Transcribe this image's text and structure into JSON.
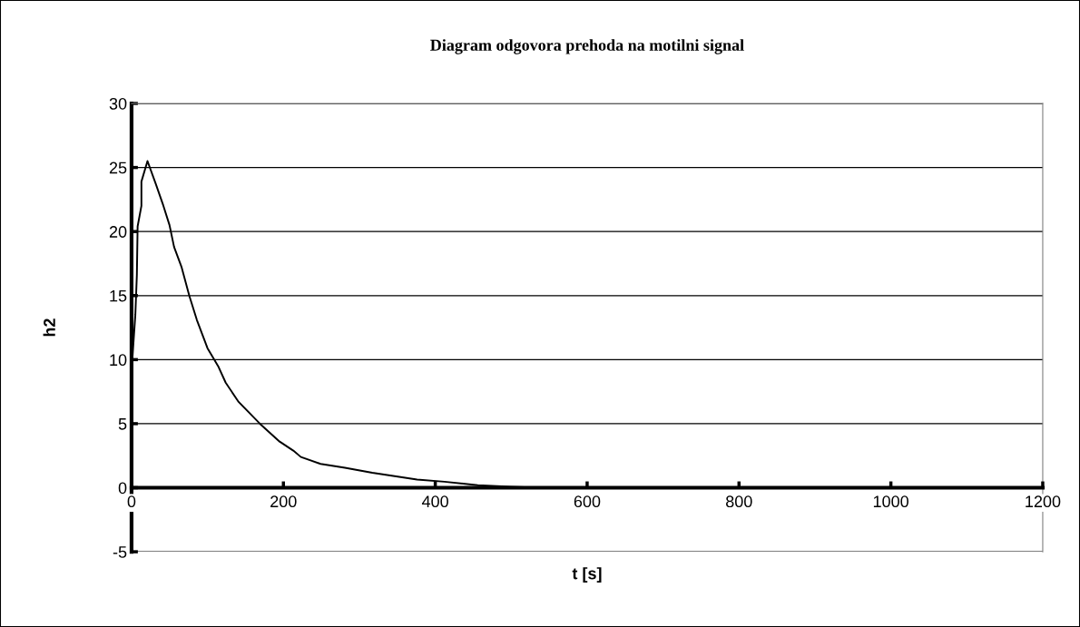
{
  "chart_data": {
    "type": "line",
    "title": "Diagram odgovora prehoda na motilni signal",
    "xlabel": "t [s]",
    "ylabel": "h2",
    "x": [
      0,
      1,
      5,
      7,
      8,
      13,
      13,
      21,
      32,
      42,
      50,
      56,
      66,
      76,
      86,
      100,
      114,
      124,
      141,
      169,
      195,
      213,
      223,
      249,
      281,
      317,
      376,
      412,
      456,
      500,
      535,
      1200
    ],
    "series": [
      {
        "color": "#000000",
        "values": [
          5.0,
          10.0,
          13.5,
          16.6,
          20.4,
          22.0,
          23.9,
          25.5,
          23.7,
          22.0,
          20.5,
          18.8,
          17.2,
          15.0,
          13.1,
          10.9,
          9.5,
          8.2,
          6.7,
          5.0,
          3.6,
          2.9,
          2.4,
          1.86,
          1.56,
          1.17,
          0.64,
          0.47,
          0.19,
          0.08,
          0,
          0
        ]
      }
    ],
    "xlim": [
      0,
      1200
    ],
    "xticks": [
      0,
      200,
      400,
      600,
      800,
      1000,
      1200
    ],
    "ylim": [
      -5,
      30
    ],
    "yticks": [
      -5,
      0,
      5,
      10,
      15,
      20,
      25,
      30
    ],
    "grid": "y",
    "marker": "none",
    "line_style": "solid"
  }
}
